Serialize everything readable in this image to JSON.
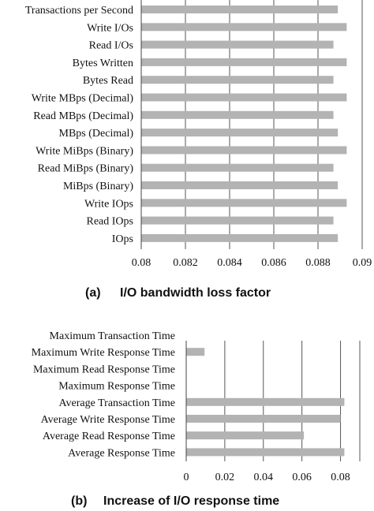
{
  "chart_data": [
    {
      "type": "bar",
      "orientation": "horizontal",
      "caption_label": "(a)",
      "caption_title": "I/O bandwidth loss factor",
      "categories": [
        "Transactions per Second",
        "Write I/Os",
        "Read I/Os",
        "Bytes Written",
        "Bytes Read",
        "Write MBps (Decimal)",
        "Read MBps (Decimal)",
        "MBps (Decimal)",
        "Write MiBps (Binary)",
        "Read MiBps (Binary)",
        "MiBps (Binary)",
        "Write IOps",
        "Read IOps",
        "IOps"
      ],
      "values": [
        0.0889,
        0.0893,
        0.0887,
        0.0893,
        0.0887,
        0.0893,
        0.0887,
        0.0889,
        0.0893,
        0.0887,
        0.0889,
        0.0893,
        0.0887,
        0.0889
      ],
      "xlim": [
        0.08,
        0.09
      ],
      "xticks": [
        "0.08",
        "0.082",
        "0.084",
        "0.086",
        "0.088",
        "0.09"
      ],
      "grid": true,
      "color": "#b3b3b3"
    },
    {
      "type": "bar",
      "orientation": "horizontal",
      "caption_label": "(b)",
      "caption_title": "Increase of I/O response time",
      "categories": [
        "Maximum Transaction Time",
        "Maximum Write Response Time",
        "Maximum Read Response Time",
        "Maximum Response Time",
        "Average Transaction Time",
        "Average Write Response Time",
        "Average Read Response Time",
        "Average Response Time"
      ],
      "values": [
        0,
        0.0095,
        0,
        0,
        0.082,
        0.08,
        0.061,
        0.082
      ],
      "xlim": [
        0,
        0.09
      ],
      "xticks": [
        "0",
        "0.02",
        "0.04",
        "0.06",
        "0.08"
      ],
      "grid": true,
      "color": "#b3b3b3"
    }
  ]
}
